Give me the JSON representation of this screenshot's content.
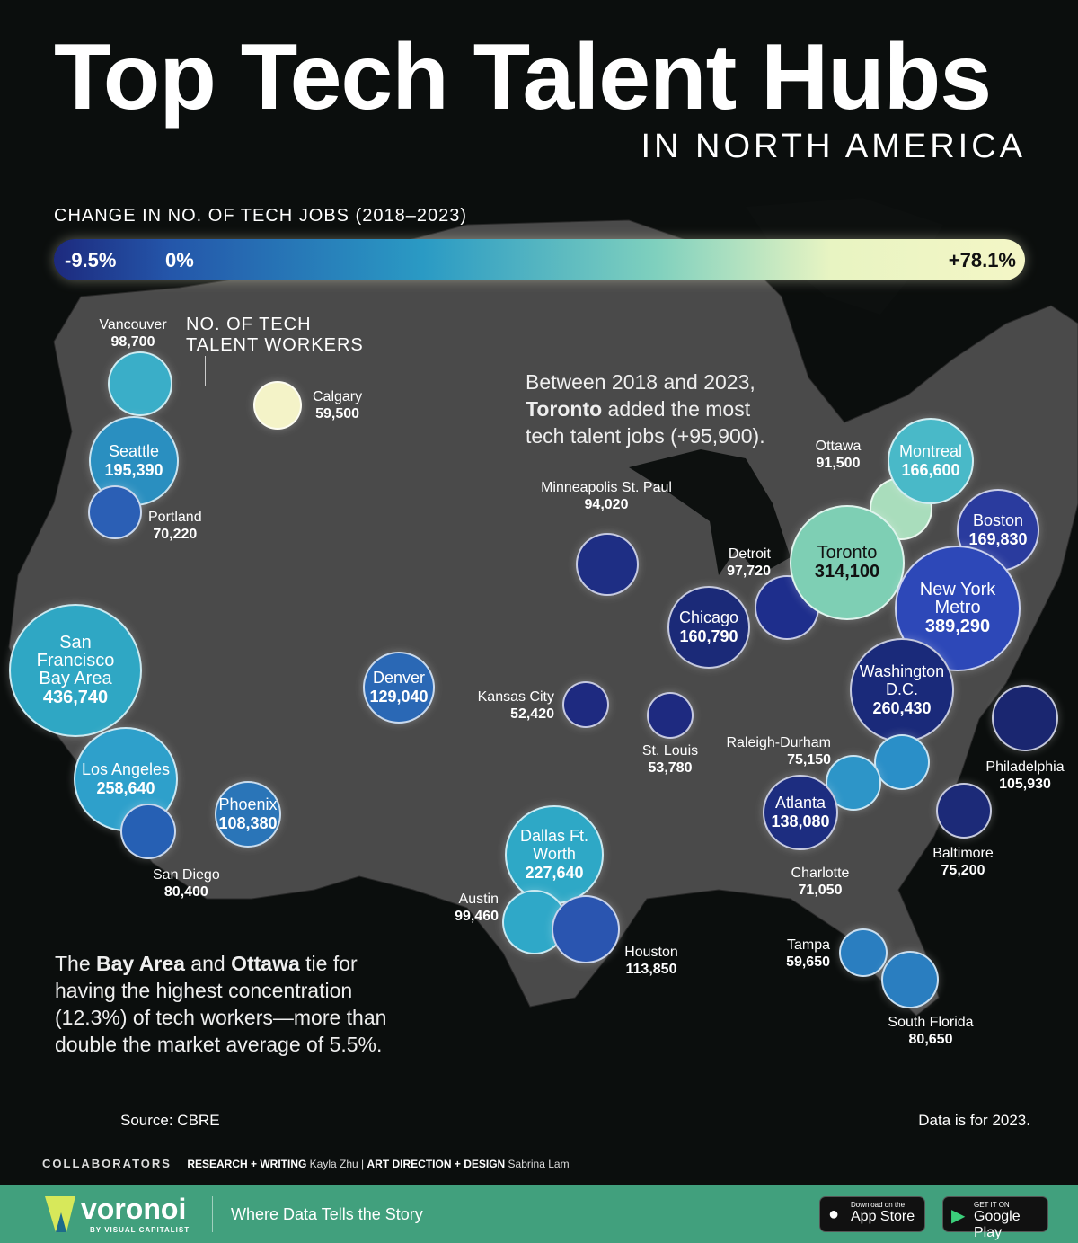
{
  "title": "Top Tech Talent Hubs",
  "subtitle": "IN NORTH AMERICA",
  "legend": {
    "title": "CHANGE IN NO. OF TECH JOBS (2018–2023)",
    "min": "-9.5%",
    "zero": "0%",
    "max": "+78.1%",
    "colors": [
      "#1d2a7e",
      "#2a9ac4",
      "#7fd0be",
      "#f4f6c6"
    ]
  },
  "size_note": [
    "NO. OF TECH",
    "TALENT WORKERS"
  ],
  "callout_toronto": {
    "pre": "Between 2018 and 2023,",
    "bold": "Toronto",
    "post": "added the most",
    "line3": "tech talent jobs (+95,900)."
  },
  "callout_bay": {
    "p1": "The ",
    "b1": "Bay Area",
    "p2": " and ",
    "b2": "Ottawa",
    "p3": " tie for",
    "l2": "having the highest concentration",
    "l3": "(12.3%) of tech workers—more than",
    "l4": "double the market average of 5.5%."
  },
  "cities": [
    {
      "name": "Vancouver",
      "value": "98,700",
      "color": "#3aaec8"
    },
    {
      "name": "Calgary",
      "value": "59,500",
      "color": "#f4f3c8"
    },
    {
      "name": "Seattle",
      "value": "195,390",
      "color": "#2a8fc0"
    },
    {
      "name": "Portland",
      "value": "70,220",
      "color": "#2b5fb5"
    },
    {
      "name": "San Francisco Bay Area",
      "value": "436,740",
      "color": "#2fa7c4"
    },
    {
      "name": "Los Angeles",
      "value": "258,640",
      "color": "#2ea0cb"
    },
    {
      "name": "San Diego",
      "value": "80,400",
      "color": "#2660b4"
    },
    {
      "name": "Phoenix",
      "value": "108,380",
      "color": "#2a75b8"
    },
    {
      "name": "Denver",
      "value": "129,040",
      "color": "#2a68b5"
    },
    {
      "name": "Minneapolis St. Paul",
      "value": "94,020",
      "color": "#1e2e84"
    },
    {
      "name": "Kansas City",
      "value": "52,420",
      "color": "#1e2a80"
    },
    {
      "name": "St. Louis",
      "value": "53,780",
      "color": "#1e2a80"
    },
    {
      "name": "Chicago",
      "value": "160,790",
      "color": "#1b2a78"
    },
    {
      "name": "Detroit",
      "value": "97,720",
      "color": "#1e2e8c"
    },
    {
      "name": "Ottawa",
      "value": "91,500",
      "color": "#a9ddbc"
    },
    {
      "name": "Toronto",
      "value": "314,100",
      "color": "#7ecfb4"
    },
    {
      "name": "Montreal",
      "value": "166,600",
      "color": "#49b9c8"
    },
    {
      "name": "Boston",
      "value": "169,830",
      "color": "#2a3b9e"
    },
    {
      "name": "New York Metro",
      "value": "389,290",
      "color": "#2d48b8"
    },
    {
      "name": "Philadelphia",
      "value": "105,930",
      "color": "#1a2670"
    },
    {
      "name": "Washington D.C.",
      "value": "260,430",
      "color": "#1a2a7a"
    },
    {
      "name": "Baltimore",
      "value": "75,200",
      "color": "#1c2a78"
    },
    {
      "name": "Raleigh-Durham",
      "value": "75,150",
      "color": "#2a8fc8"
    },
    {
      "name": "Charlotte",
      "value": "71,050",
      "color": "#2d95c8"
    },
    {
      "name": "Atlanta",
      "value": "138,080",
      "color": "#1d2d80"
    },
    {
      "name": "Dallas Ft. Worth",
      "value": "227,640",
      "color": "#2ea8c6"
    },
    {
      "name": "Austin",
      "value": "99,460",
      "color": "#2fa8c8"
    },
    {
      "name": "Houston",
      "value": "113,850",
      "color": "#2a55b0"
    },
    {
      "name": "Tampa",
      "value": "59,650",
      "color": "#2a7ec0"
    },
    {
      "name": "South Florida",
      "value": "80,650",
      "color": "#2a7ec0"
    }
  ],
  "footer": {
    "source": "Source: CBRE",
    "data_year": "Data is for 2023.",
    "collaborators": "COLLABORATORS",
    "research_label": "RESEARCH + WRITING",
    "research_name": "Kayla Zhu",
    "sep": "|",
    "design_label": "ART DIRECTION + DESIGN",
    "design_name": "Sabrina Lam"
  },
  "brand": {
    "name": "voronoi",
    "sub": "BY VISUAL CAPITALIST",
    "tagline": "Where Data Tells the Story",
    "app_store_small": "Download on the",
    "app_store": "App Store",
    "play_small": "GET IT ON",
    "play": "Google Play",
    "bar_color": "#41a07d"
  }
}
